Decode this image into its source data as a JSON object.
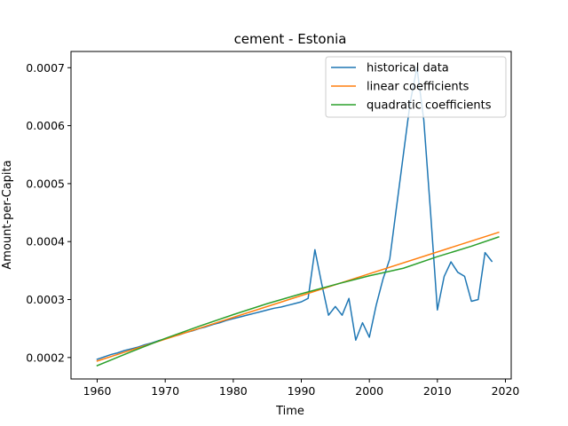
{
  "chart_data": {
    "type": "line",
    "title": "cement - Estonia",
    "xlabel": "Time",
    "ylabel": "Amount-per-Capita",
    "xlim": [
      1956.15,
      2020.85
    ],
    "ylim": [
      0.000163,
      0.000728
    ],
    "xticks": [
      1960,
      1970,
      1980,
      1990,
      2000,
      2010,
      2020
    ],
    "xtick_labels": [
      "1960",
      "1970",
      "1980",
      "1990",
      "2000",
      "2010",
      "2020"
    ],
    "yticks": [
      0.0002,
      0.0003,
      0.0004,
      0.0005,
      0.0006,
      0.0007
    ],
    "ytick_labels": [
      "0.0002",
      "0.0003",
      "0.0004",
      "0.0005",
      "0.0006",
      "0.0007"
    ],
    "legend_position": "top-right",
    "grid": false,
    "series": [
      {
        "name": "historical data",
        "color": "#1f77b4",
        "x": [
          1960,
          1961,
          1962,
          1963,
          1964,
          1965,
          1966,
          1967,
          1968,
          1969,
          1970,
          1971,
          1972,
          1973,
          1974,
          1975,
          1976,
          1977,
          1978,
          1979,
          1980,
          1981,
          1982,
          1983,
          1984,
          1985,
          1986,
          1987,
          1988,
          1989,
          1990,
          1991,
          1992,
          1993,
          1994,
          1995,
          1996,
          1997,
          1998,
          1999,
          2000,
          2001,
          2002,
          2003,
          2004,
          2005,
          2006,
          2007,
          2008,
          2009,
          2010,
          2011,
          2012,
          2013,
          2014,
          2015,
          2016,
          2017,
          2018
        ],
        "y": [
          0.000197,
          0.000201,
          0.000205,
          0.000208,
          0.000212,
          0.000215,
          0.000218,
          0.000222,
          0.000225,
          0.000229,
          0.000232,
          0.000236,
          0.000239,
          0.000243,
          0.000246,
          0.00025,
          0.000253,
          0.000257,
          0.00026,
          0.000264,
          0.000267,
          0.00027,
          0.000273,
          0.000276,
          0.000279,
          0.000282,
          0.000285,
          0.000287,
          0.00029,
          0.000293,
          0.000296,
          0.000302,
          0.000386,
          0.000327,
          0.000273,
          0.000288,
          0.000273,
          0.000302,
          0.00023,
          0.00026,
          0.000235,
          0.00029,
          0.000335,
          0.00037,
          0.00046,
          0.00055,
          0.00064,
          0.0007,
          0.00061,
          0.00045,
          0.000282,
          0.00034,
          0.000365,
          0.000347,
          0.00034,
          0.000297,
          0.0003,
          0.000381,
          0.000366
        ]
      },
      {
        "name": "linear coefficients",
        "color": "#ff7f0e",
        "x": [
          1960,
          2019
        ],
        "y": [
          0.000194,
          0.000416
        ]
      },
      {
        "name": "quadratic coefficients",
        "color": "#2ca02c",
        "x": [
          1960,
          1965,
          1970,
          1975,
          1980,
          1985,
          1990,
          1995,
          2000,
          2005,
          2010,
          2015,
          2019
        ],
        "y": [
          0.000186,
          0.00021,
          0.000233,
          0.000254,
          0.000274,
          0.000293,
          0.00031,
          0.000326,
          0.000341,
          0.000354,
          0.000374,
          0.000392,
          0.000408
        ]
      }
    ]
  }
}
